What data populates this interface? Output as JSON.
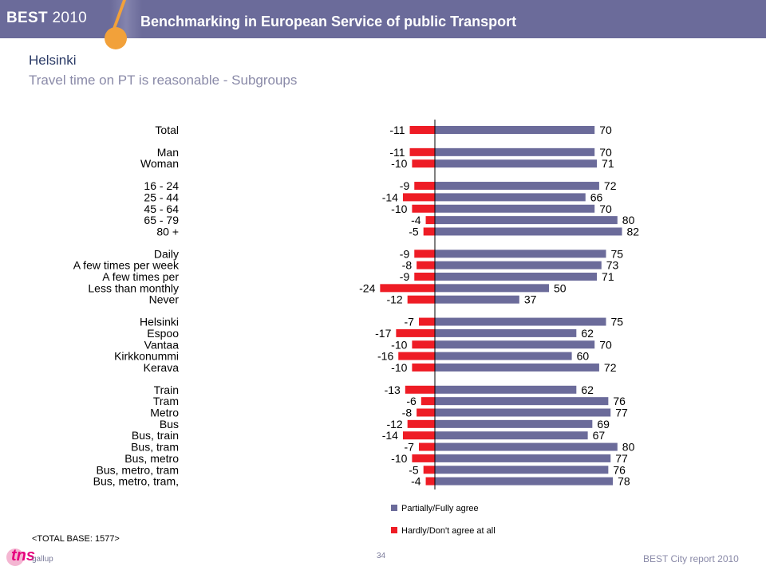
{
  "header": {
    "brand": "BEST",
    "brand_year": "2010",
    "title": "Benchmarking in European Service of public Transport"
  },
  "page": {
    "title": "Helsinki",
    "subtitle": "Travel time on PT is reasonable - Subgroups"
  },
  "footer": {
    "base_note": "<TOTAL BASE: 1577>",
    "page_number": "34",
    "report": "BEST City report 2010",
    "logo_text": "tns",
    "logo_subtext": "gallup"
  },
  "colors": {
    "positive": "#6b6b9a",
    "negative": "#ee1c25"
  },
  "chart_data": {
    "type": "bar",
    "orientation": "horizontal",
    "legend_position": "bottom",
    "legend": [
      "Partially/Fully agree",
      "Hardly/Don't agree at all"
    ],
    "rows": [
      {
        "label": "Total",
        "positive": 70,
        "negative": -11,
        "group": 0
      },
      {
        "label": "Man",
        "positive": 70,
        "negative": -11,
        "group": 1
      },
      {
        "label": "Woman",
        "positive": 71,
        "negative": -10,
        "group": 1
      },
      {
        "label": "16 - 24",
        "positive": 72,
        "negative": -9,
        "group": 2
      },
      {
        "label": "25 - 44",
        "positive": 66,
        "negative": -14,
        "group": 2
      },
      {
        "label": "45 - 64",
        "positive": 70,
        "negative": -10,
        "group": 2
      },
      {
        "label": "65 - 79",
        "positive": 80,
        "negative": -4,
        "group": 2
      },
      {
        "label": "80 +",
        "positive": 82,
        "negative": -5,
        "group": 2
      },
      {
        "label": "Daily",
        "positive": 75,
        "negative": -9,
        "group": 3
      },
      {
        "label": "A few times per week",
        "positive": 73,
        "negative": -8,
        "group": 3
      },
      {
        "label": "A few times per",
        "positive": 71,
        "negative": -9,
        "group": 3
      },
      {
        "label": "Less than monthly",
        "positive": 50,
        "negative": -24,
        "group": 3
      },
      {
        "label": "Never",
        "positive": 37,
        "negative": -12,
        "group": 3
      },
      {
        "label": "Helsinki",
        "positive": 75,
        "negative": -7,
        "group": 4
      },
      {
        "label": "Espoo",
        "positive": 62,
        "negative": -17,
        "group": 4
      },
      {
        "label": "Vantaa",
        "positive": 70,
        "negative": -10,
        "group": 4
      },
      {
        "label": "Kirkkonummi",
        "positive": 60,
        "negative": -16,
        "group": 4
      },
      {
        "label": "Kerava",
        "positive": 72,
        "negative": -10,
        "group": 4
      },
      {
        "label": "Train",
        "positive": 62,
        "negative": -13,
        "group": 5
      },
      {
        "label": "Tram",
        "positive": 76,
        "negative": -6,
        "group": 5
      },
      {
        "label": "Metro",
        "positive": 77,
        "negative": -8,
        "group": 5
      },
      {
        "label": "Bus",
        "positive": 69,
        "negative": -12,
        "group": 5
      },
      {
        "label": "Bus, train",
        "positive": 67,
        "negative": -14,
        "group": 5
      },
      {
        "label": "Bus, tram",
        "positive": 80,
        "negative": -7,
        "group": 5
      },
      {
        "label": "Bus, metro",
        "positive": 77,
        "negative": -10,
        "group": 5
      },
      {
        "label": "Bus, metro, tram",
        "positive": 76,
        "negative": -5,
        "group": 5
      },
      {
        "label": "Bus, metro, tram,",
        "positive": 78,
        "negative": -4,
        "group": 5
      }
    ]
  }
}
